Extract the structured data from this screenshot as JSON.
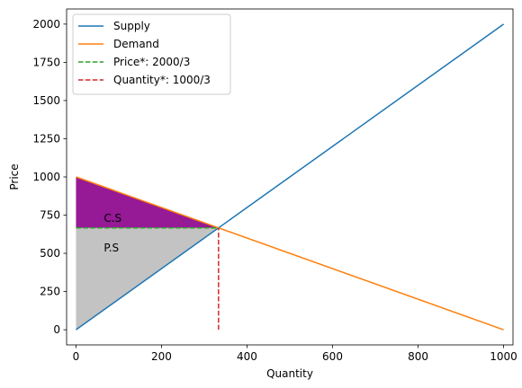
{
  "chart_data": {
    "type": "line",
    "xlabel": "Quantity",
    "ylabel": "Price",
    "xlim": [
      -22,
      1022
    ],
    "ylim": [
      -99,
      2099
    ],
    "x_ticks": [
      0,
      200,
      400,
      600,
      800,
      1000
    ],
    "y_ticks": [
      0,
      250,
      500,
      750,
      1000,
      1250,
      1500,
      1750,
      2000
    ],
    "grid": false,
    "legend_position": "upper-left",
    "series": [
      {
        "name": "Supply",
        "style": "solid",
        "color": "#1f77b4",
        "x": [
          0,
          1000
        ],
        "y": [
          0,
          2000
        ]
      },
      {
        "name": "Demand",
        "style": "solid",
        "color": "#ff7f0e",
        "x": [
          0,
          1000
        ],
        "y": [
          1000,
          0
        ]
      },
      {
        "name": "Price*: 2000/3",
        "style": "dashed",
        "color": "#2ca02c",
        "x": [
          0,
          333.33
        ],
        "y": [
          666.67,
          666.67
        ]
      },
      {
        "name": "Quantity*: 1000/3",
        "style": "dashed",
        "color": "#d62728",
        "x": [
          333.33,
          333.33
        ],
        "y": [
          0,
          666.67
        ]
      }
    ],
    "regions": [
      {
        "label": "C.S",
        "color": "#8b008b",
        "opacity": 0.9,
        "points": [
          [
            0,
            1000
          ],
          [
            333.33,
            666.67
          ],
          [
            0,
            666.67
          ]
        ],
        "label_at": [
          65,
          730
        ]
      },
      {
        "label": "P.S",
        "color": "#a9a9a9",
        "opacity": 0.7,
        "points": [
          [
            0,
            0
          ],
          [
            333.33,
            666.67
          ],
          [
            0,
            666.67
          ]
        ],
        "label_at": [
          65,
          535
        ]
      }
    ]
  }
}
